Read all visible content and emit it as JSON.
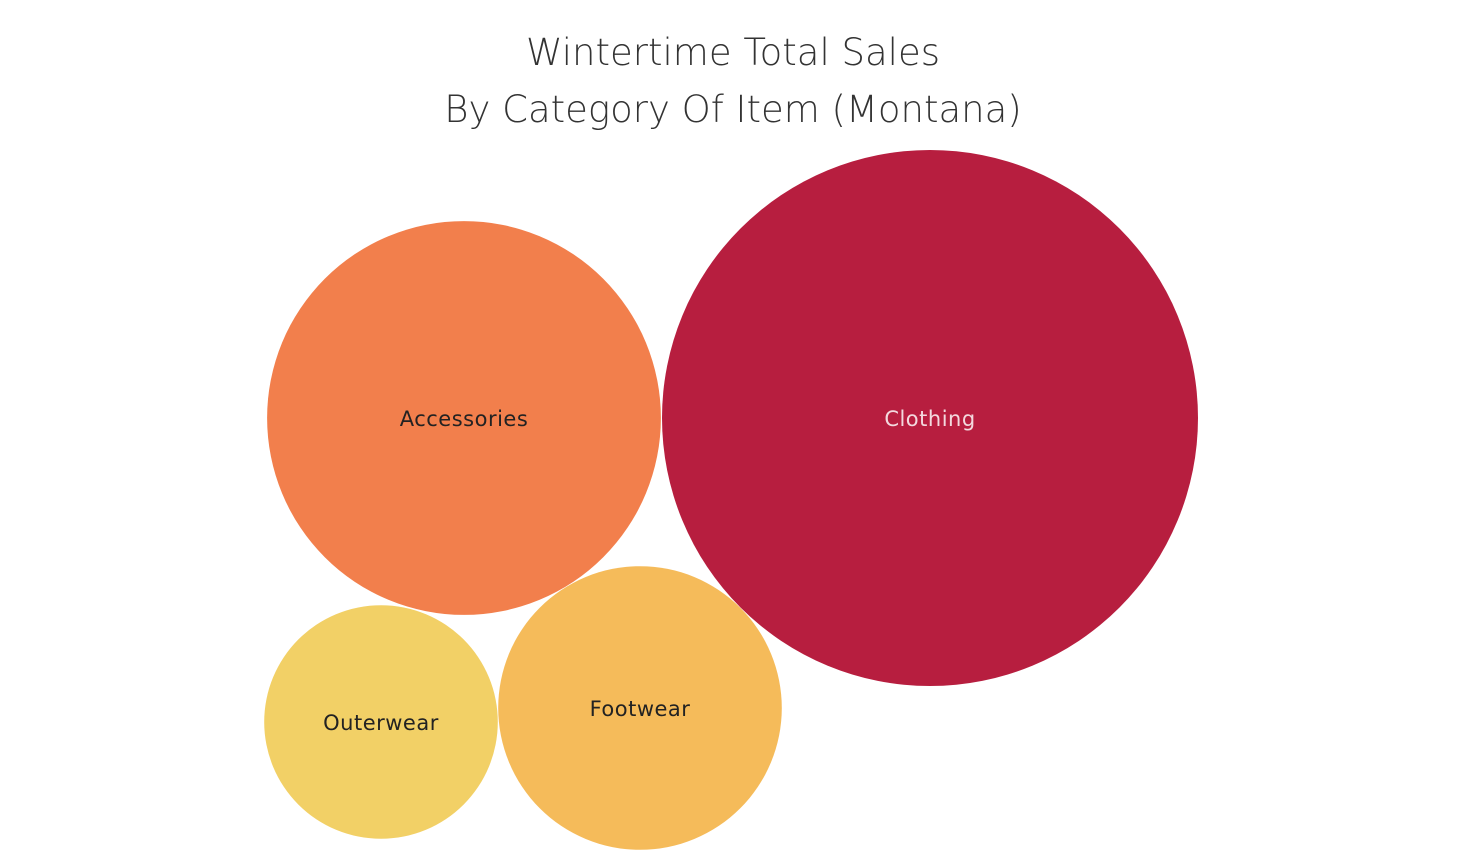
{
  "chart_data": {
    "type": "packed-bubble",
    "title": [
      "Wintertime Total Sales",
      "By Category Of Item (Montana)"
    ],
    "measure": "Total Sales",
    "categories": [
      "Clothing",
      "Accessories",
      "Footwear",
      "Outerwear"
    ],
    "values": [
      100,
      54,
      28,
      19
    ],
    "value_note": "relative sizes estimated from bubble areas (Clothing = 100); no numeric values shown",
    "colors": {
      "Clothing": "#b71e3f",
      "Accessories": "#f27f4c",
      "Footwear": "#f5bb5a",
      "Outerwear": "#f2d066"
    },
    "label_colors": {
      "Clothing": "#f3d9de",
      "Accessories": "#222222",
      "Footwear": "#222222",
      "Outerwear": "#222222"
    },
    "legend": "none"
  }
}
